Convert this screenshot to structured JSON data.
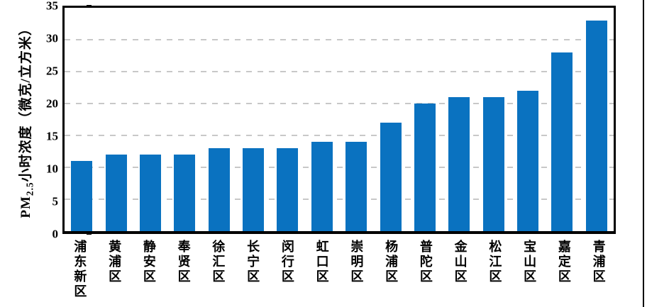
{
  "chart_data": {
    "type": "bar",
    "title": "",
    "categories": [
      "浦东新区",
      "黄浦区",
      "静安区",
      "奉贤区",
      "徐汇区",
      "长宁区",
      "闵行区",
      "虹口区",
      "崇明区",
      "杨浦区",
      "普陀区",
      "金山区",
      "松江区",
      "宝山区",
      "嘉定区",
      "青浦区"
    ],
    "values": [
      11,
      12,
      12,
      12,
      13,
      13,
      13,
      14,
      14,
      17,
      20,
      21,
      21,
      22,
      28,
      33
    ],
    "ylabel": "PM2.5小时浓度（微克/立方米）",
    "ylabel_parts": {
      "prefix": "PM",
      "sub": "2.5",
      "suffix": "小时浓度（微克/立方米）"
    },
    "xlabel": "",
    "ylim": [
      0,
      35
    ],
    "yticks": [
      0,
      5,
      10,
      15,
      20,
      25,
      30,
      35
    ],
    "grid": "horizontal-dashed",
    "legend": "none",
    "bar_color": "#0a72c0",
    "grid_color": "#c8c8c8",
    "axis_color": "#000000"
  }
}
